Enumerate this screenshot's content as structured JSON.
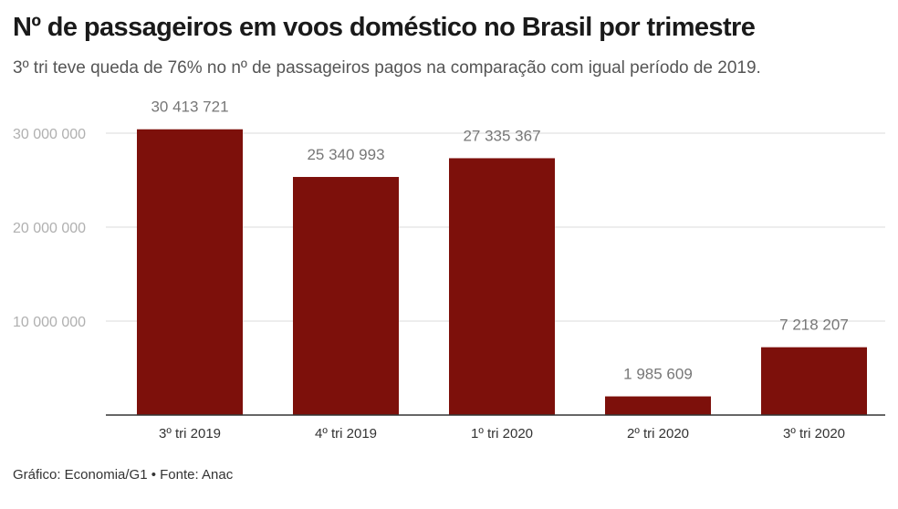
{
  "header": {
    "title": "Nº de passageiros em voos doméstico no Brasil por trimestre",
    "subtitle": "3º tri teve queda de 76% no nº de passageiros pagos na comparação com igual período de 2019."
  },
  "footer": {
    "credit": "Gráfico: Economia/G1 • Fonte: Anac"
  },
  "colors": {
    "bar": "#7d100b",
    "grid": "#e2e2e2",
    "axis": "#333333",
    "tick_label": "#b0b0b0",
    "value_label": "#777777",
    "category_label": "#333333"
  },
  "chart_data": {
    "type": "bar",
    "title": "Nº de passageiros em voos doméstico no Brasil por trimestre",
    "subtitle": "3º tri teve queda de 76% no nº de passageiros pagos na comparação com igual período de 2019.",
    "categories": [
      "3º tri 2019",
      "4º tri 2019",
      "1º tri 2020",
      "2º tri 2020",
      "3º tri 2020"
    ],
    "values": [
      30413721,
      25340993,
      27335367,
      1985609,
      7218207
    ],
    "value_labels": [
      "30 413 721",
      "25 340 993",
      "27 335 367",
      "1 985 609",
      "7 218 207"
    ],
    "yticks": [
      10000000,
      20000000,
      30000000
    ],
    "ytick_labels": [
      "10 000 000",
      "20 000 000",
      "30 000 000"
    ],
    "ylim": [
      0,
      30000000
    ],
    "xlabel": "",
    "ylabel": "",
    "grid": true
  }
}
